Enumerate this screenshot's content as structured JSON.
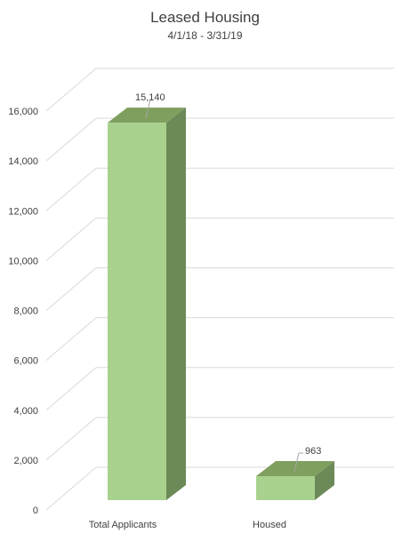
{
  "chart_data": {
    "type": "bar",
    "title": "Leased Housing",
    "subtitle": "4/1/18 - 3/31/19",
    "categories": [
      "Total Applicants",
      "Housed"
    ],
    "values": [
      15140,
      963
    ],
    "data_labels": [
      "15,140",
      "963"
    ],
    "ylim": [
      0,
      16000
    ],
    "y_ticks": [
      0,
      2000,
      4000,
      6000,
      8000,
      10000,
      12000,
      14000,
      16000
    ],
    "y_tick_labels": [
      "0",
      "2,000",
      "4,000",
      "6,000",
      "8,000",
      "10,000",
      "12,000",
      "14,000",
      "16,000"
    ],
    "grid": true,
    "style": "3d-column",
    "colors": {
      "bar_front": "#a9d18e",
      "bar_top": "#7f9f5e",
      "bar_side": "#6b8a57",
      "grid": "#d9d9d9",
      "text": "#404040"
    }
  }
}
